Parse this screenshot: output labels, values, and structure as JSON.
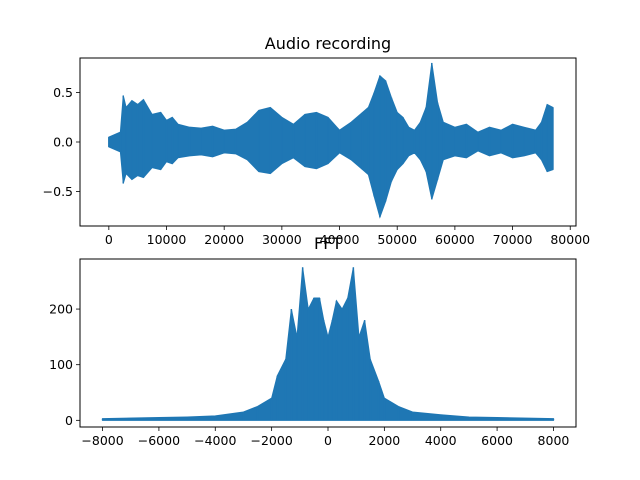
{
  "colors": {
    "series": "#1f77b4",
    "axes": "#000000",
    "background": "#ffffff"
  },
  "chart_data": [
    {
      "type": "area",
      "title": "Audio recording",
      "xlabel": "",
      "ylabel": "",
      "xlim": [
        -5000,
        81000
      ],
      "ylim": [
        -0.85,
        0.85
      ],
      "xticks": [
        0,
        10000,
        20000,
        30000,
        40000,
        50000,
        60000,
        70000,
        80000
      ],
      "xtick_labels": [
        "0",
        "10000",
        "20000",
        "30000",
        "40000",
        "50000",
        "60000",
        "70000",
        "80000"
      ],
      "yticks": [
        -0.5,
        0.0,
        0.5
      ],
      "ytick_labels": [
        "−0.5",
        "0.0",
        "0.5"
      ],
      "grid": false,
      "legend": "none",
      "series": [
        {
          "x": [
            0,
            2000,
            2500,
            3000,
            4000,
            5000,
            6000,
            7500,
            9000,
            10000,
            11000,
            12000,
            14000,
            16000,
            18000,
            20000,
            22000,
            24000,
            26000,
            28000,
            30000,
            32000,
            34000,
            36000,
            38000,
            40000,
            42000,
            44000,
            45000,
            46000,
            47000,
            48000,
            49000,
            50000,
            51000,
            52000,
            53000,
            54000,
            55000,
            56000,
            57000,
            58000,
            60000,
            62000,
            64000,
            66000,
            68000,
            70000,
            72000,
            74000,
            75000,
            76000,
            77000
          ],
          "upper": [
            0.05,
            0.1,
            0.47,
            0.35,
            0.42,
            0.38,
            0.43,
            0.28,
            0.3,
            0.22,
            0.25,
            0.18,
            0.15,
            0.14,
            0.16,
            0.12,
            0.13,
            0.2,
            0.32,
            0.35,
            0.25,
            0.18,
            0.28,
            0.3,
            0.25,
            0.12,
            0.2,
            0.3,
            0.35,
            0.5,
            0.67,
            0.62,
            0.45,
            0.3,
            0.25,
            0.15,
            0.12,
            0.2,
            0.35,
            0.8,
            0.4,
            0.2,
            0.15,
            0.18,
            0.1,
            0.15,
            0.12,
            0.18,
            0.15,
            0.12,
            0.2,
            0.38,
            0.35
          ],
          "lower": [
            -0.05,
            -0.1,
            -0.42,
            -0.32,
            -0.38,
            -0.34,
            -0.36,
            -0.26,
            -0.28,
            -0.2,
            -0.22,
            -0.16,
            -0.14,
            -0.13,
            -0.15,
            -0.11,
            -0.12,
            -0.18,
            -0.3,
            -0.32,
            -0.22,
            -0.16,
            -0.25,
            -0.27,
            -0.22,
            -0.11,
            -0.18,
            -0.28,
            -0.33,
            -0.55,
            -0.76,
            -0.6,
            -0.4,
            -0.28,
            -0.22,
            -0.14,
            -0.11,
            -0.18,
            -0.3,
            -0.58,
            -0.38,
            -0.18,
            -0.14,
            -0.16,
            -0.09,
            -0.14,
            -0.11,
            -0.16,
            -0.14,
            -0.11,
            -0.18,
            -0.3,
            -0.28
          ]
        }
      ]
    },
    {
      "type": "line",
      "title": "FFT",
      "xlabel": "",
      "ylabel": "",
      "xlim": [
        -8800,
        8800
      ],
      "ylim": [
        -12,
        290
      ],
      "xticks": [
        -8000,
        -6000,
        -4000,
        -2000,
        0,
        2000,
        4000,
        6000,
        8000
      ],
      "xtick_labels": [
        "−8000",
        "−6000",
        "−4000",
        "−2000",
        "0",
        "2000",
        "4000",
        "6000",
        "8000"
      ],
      "yticks": [
        0,
        100,
        200
      ],
      "ytick_labels": [
        "0",
        "100",
        "200"
      ],
      "grid": false,
      "legend": "none",
      "series": [
        {
          "x": [
            -8000,
            -6000,
            -5000,
            -4000,
            -3000,
            -2500,
            -2000,
            -1800,
            -1500,
            -1300,
            -1100,
            -900,
            -700,
            -500,
            -300,
            -150,
            0,
            150,
            300,
            500,
            700,
            900,
            1100,
            1300,
            1500,
            1800,
            2000,
            2500,
            3000,
            4000,
            5000,
            6000,
            8000
          ],
          "upper": [
            3,
            5,
            6,
            8,
            15,
            25,
            40,
            80,
            110,
            200,
            150,
            275,
            200,
            220,
            220,
            180,
            150,
            180,
            215,
            200,
            220,
            275,
            150,
            180,
            110,
            70,
            40,
            25,
            15,
            10,
            6,
            5,
            3
          ],
          "lower": [
            0,
            0,
            0,
            0,
            0,
            0,
            0,
            0,
            0,
            0,
            0,
            0,
            0,
            0,
            0,
            0,
            0,
            0,
            0,
            0,
            0,
            0,
            0,
            0,
            0,
            0,
            0,
            0,
            0,
            0,
            0,
            0,
            0
          ]
        }
      ]
    }
  ]
}
